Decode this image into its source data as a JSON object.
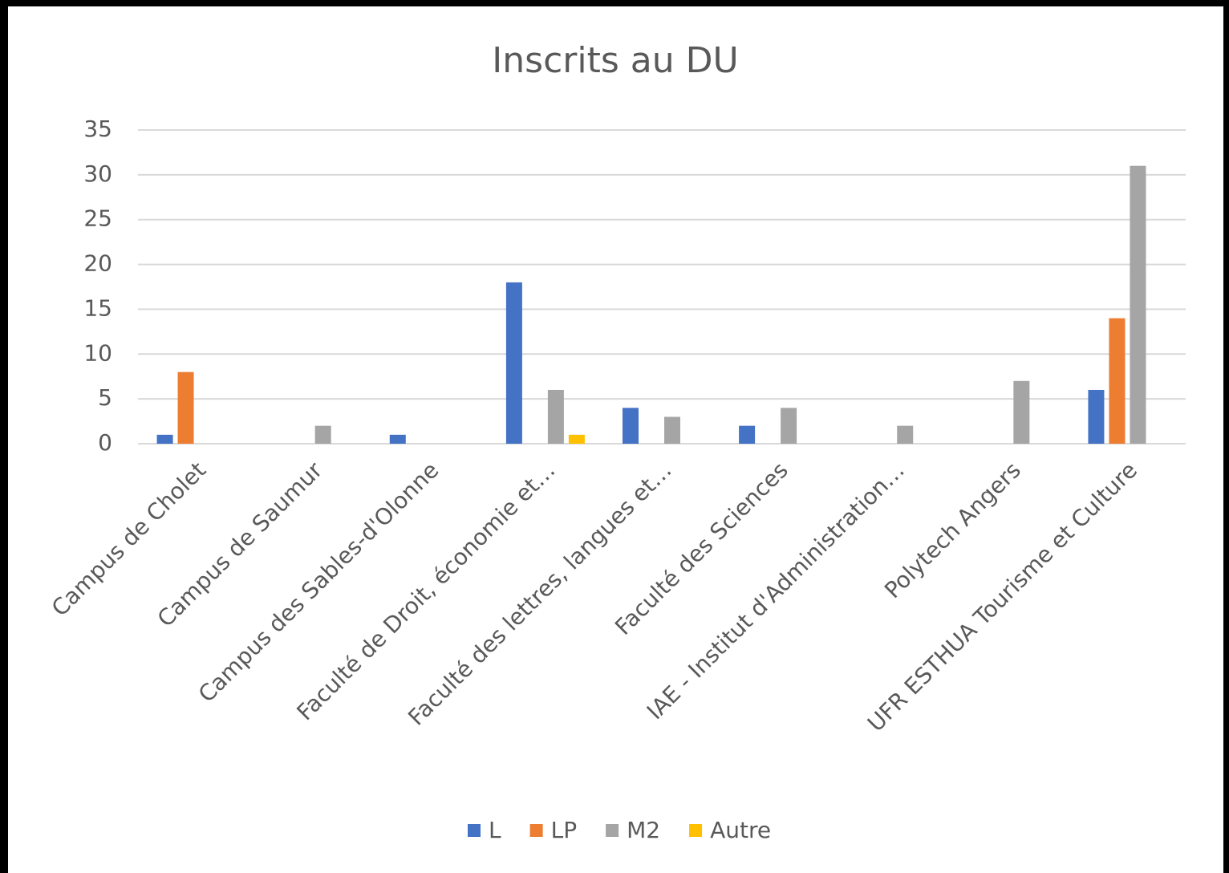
{
  "chart_data": {
    "type": "bar",
    "title": "Inscrits au DU",
    "categories": [
      "Campus de Cholet",
      "Campus de Saumur",
      "Campus des Sables-d'Olonne",
      "Faculté de Droit, économie et…",
      "Faculté des lettres, langues et…",
      "Faculté des Sciences",
      "IAE - Institut d'Administration…",
      "Polytech Angers",
      "UFR ESTHUA Tourisme et Culture"
    ],
    "series": [
      {
        "name": "L",
        "color": "#4472c4",
        "values": [
          1,
          null,
          1,
          18,
          4,
          2,
          null,
          null,
          6
        ]
      },
      {
        "name": "LP",
        "color": "#ed7d31",
        "values": [
          8,
          null,
          null,
          null,
          null,
          null,
          null,
          null,
          14
        ]
      },
      {
        "name": "M2",
        "color": "#a5a5a5",
        "values": [
          null,
          2,
          null,
          6,
          3,
          4,
          2,
          7,
          31
        ]
      },
      {
        "name": "Autre",
        "color": "#ffc000",
        "values": [
          null,
          null,
          null,
          1,
          null,
          null,
          null,
          null,
          null
        ]
      }
    ],
    "ylim": [
      0,
      35
    ],
    "yticks": [
      0,
      5,
      10,
      15,
      20,
      25,
      30,
      35
    ],
    "grid": true,
    "legend": "bottom"
  }
}
